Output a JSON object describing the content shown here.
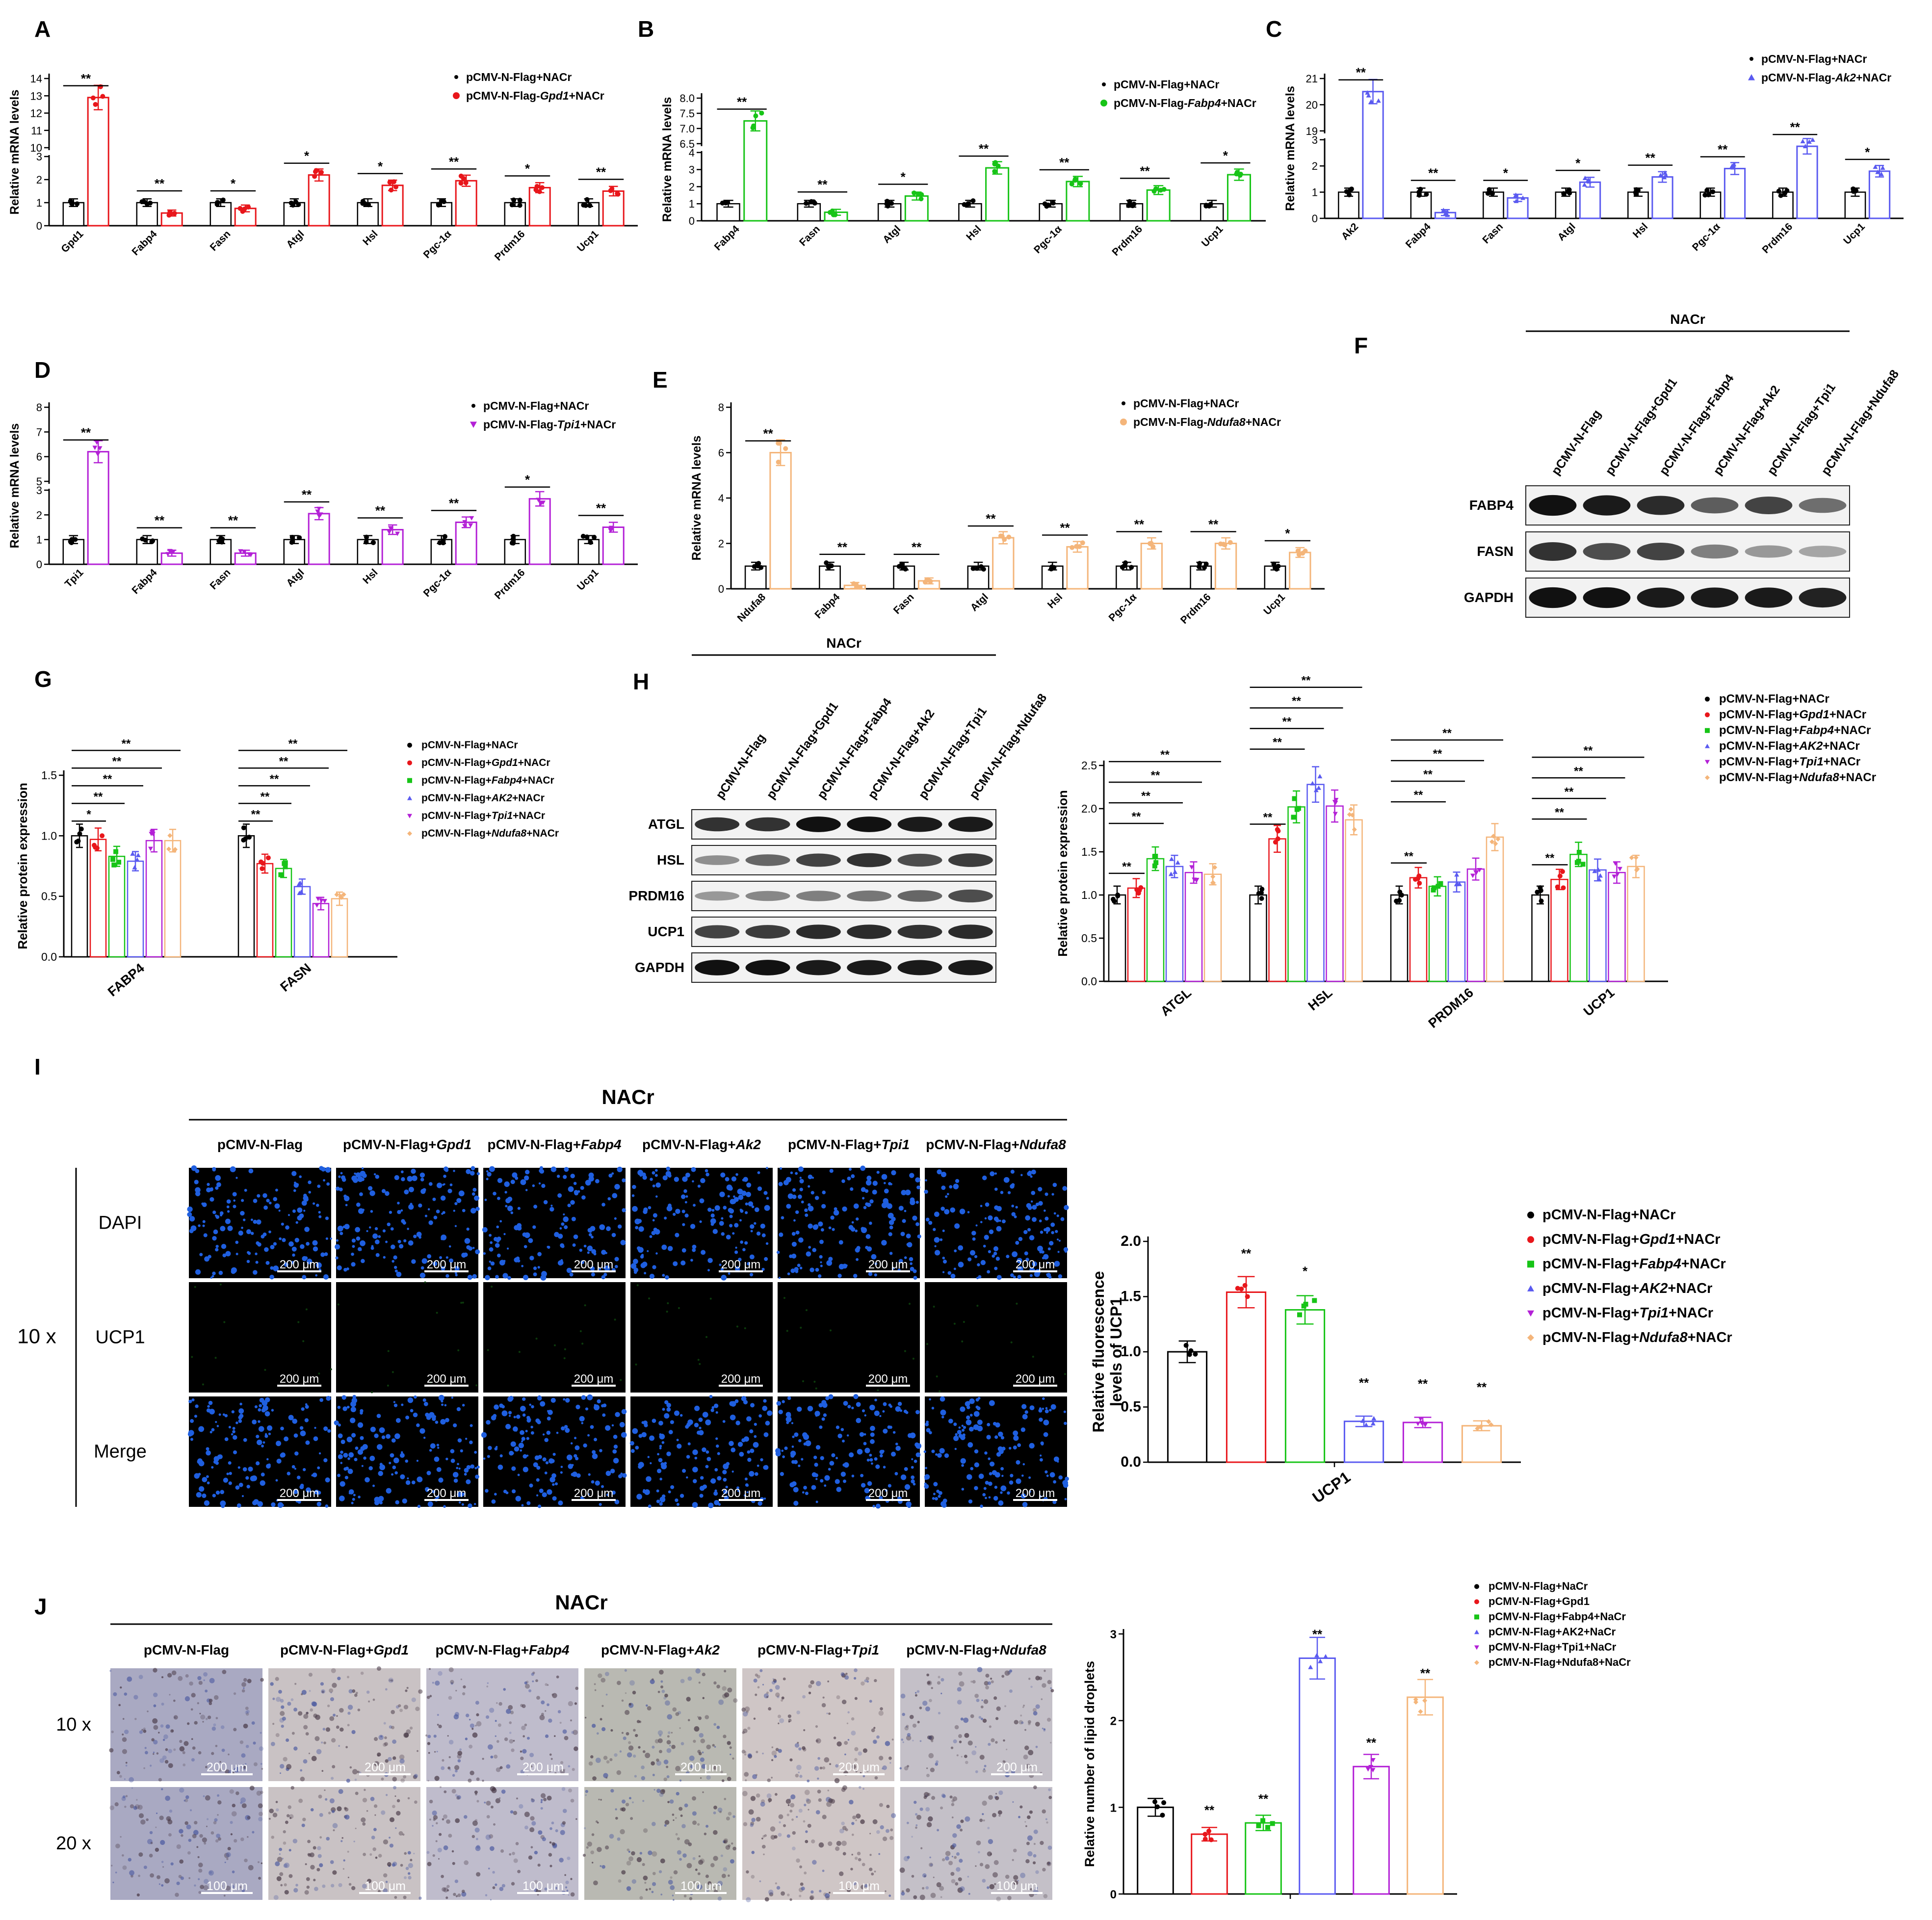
{
  "palette": {
    "ctrl": "#000000",
    "gpd1": "#e8161b",
    "fabp4": "#17c417",
    "ak2": "#5a5af0",
    "tpi1": "#b320d6",
    "ndufa8": "#f4b57a",
    "dapi": "#1f5fe0",
    "ucp1": "#0c3a0c"
  },
  "common": {
    "ylabel_mrna": "Relative mRNA levels",
    "ylabel_protein": "Relative protein expression",
    "sig1": "*",
    "sig2": "**",
    "nacr": "NACr"
  },
  "chart_data": [
    {
      "panel": "A",
      "type": "bar",
      "ylabel": "Relative mRNA levels",
      "ylim": [
        0,
        14
      ],
      "axis_break": [
        3,
        10
      ],
      "yticks_low": [
        "0",
        "1",
        "2",
        "3"
      ],
      "yticks_high": [
        "10",
        "11",
        "12",
        "13",
        "14"
      ],
      "categories": [
        "Gpd1",
        "Fabp4",
        "Fasn",
        "Atgl",
        "Hsl",
        "Pgc-1α",
        "Prdm16",
        "Ucp1"
      ],
      "series": [
        {
          "name": "pCMV-N-Flag+NACr",
          "values": [
            1,
            1,
            1,
            1,
            1,
            1,
            1,
            1
          ]
        },
        {
          "name": "pCMV-N-Flag-Gpd1+NACr",
          "values": [
            12.9,
            0.55,
            0.75,
            2.2,
            1.75,
            1.95,
            1.65,
            1.5
          ]
        }
      ],
      "sig": [
        "**",
        "**",
        "*",
        "*",
        "*",
        "**",
        "*",
        "**"
      ]
    },
    {
      "panel": "B",
      "type": "bar",
      "ylabel": "Relative mRNA levels",
      "ylim": [
        0,
        8
      ],
      "axis_break": [
        4,
        6.5
      ],
      "yticks_low": [
        "0",
        "1",
        "2",
        "3",
        "4"
      ],
      "yticks_high": [
        "6.5",
        "7.0",
        "7.5",
        "8.0"
      ],
      "categories": [
        "Fabp4",
        "Fasn",
        "Atgl",
        "Hsl",
        "Pgc-1α",
        "Prdm16",
        "Ucp1"
      ],
      "series": [
        {
          "name": "pCMV-N-Flag+NACr",
          "values": [
            1,
            1,
            1,
            1,
            1,
            1,
            1
          ]
        },
        {
          "name": "pCMV-N-Flag-Fabp4+NACr",
          "values": [
            7.25,
            0.5,
            1.45,
            3.1,
            2.3,
            1.8,
            2.7
          ]
        }
      ],
      "sig": [
        "**",
        "**",
        "*",
        "**",
        "**",
        "**",
        "*"
      ]
    },
    {
      "panel": "C",
      "type": "bar",
      "ylabel": "Relative mRNA levels",
      "ylim": [
        0,
        21
      ],
      "axis_break": [
        3,
        19
      ],
      "yticks_low": [
        "0",
        "1",
        "2",
        "3"
      ],
      "yticks_high": [
        "19",
        "20",
        "21"
      ],
      "categories": [
        "Ak2",
        "Fabp4",
        "Fasn",
        "Atgl",
        "Hsl",
        "Pgc-1α",
        "Prdm16",
        "Ucp1"
      ],
      "series": [
        {
          "name": "pCMV-N-Flag+NACr",
          "values": [
            1,
            1,
            1,
            1,
            1,
            1,
            1,
            1
          ]
        },
        {
          "name": "pCMV-N-Flag-Ak2+NACr",
          "values": [
            20.5,
            0.22,
            0.78,
            1.38,
            1.58,
            1.9,
            2.75,
            1.8
          ]
        }
      ],
      "sig": [
        "**",
        "**",
        "*",
        "*",
        "**",
        "**",
        "**",
        "*"
      ]
    },
    {
      "panel": "D",
      "type": "bar",
      "ylabel": "Relative mRNA levels",
      "ylim": [
        0,
        8
      ],
      "axis_break": [
        3,
        5
      ],
      "yticks_low": [
        "0",
        "1",
        "2",
        "3"
      ],
      "yticks_high": [
        "5",
        "6",
        "7",
        "8"
      ],
      "categories": [
        "Tpi1",
        "Fabp4",
        "Fasn",
        "Atgl",
        "Hsl",
        "Pgc-1α",
        "Prdm16",
        "Ucp1"
      ],
      "series": [
        {
          "name": "pCMV-N-Flag+NACr",
          "values": [
            1,
            1,
            1,
            1,
            1,
            1,
            1,
            1
          ]
        },
        {
          "name": "pCMV-N-Flag-Tpi1+NACr",
          "values": [
            6.2,
            0.45,
            0.45,
            2.05,
            1.4,
            1.7,
            2.65,
            1.5
          ]
        }
      ],
      "sig": [
        "**",
        "**",
        "**",
        "**",
        "**",
        "**",
        "*",
        "**"
      ]
    },
    {
      "panel": "E",
      "type": "bar",
      "ylabel": "Relative mRNA levels",
      "ylim": [
        0,
        8
      ],
      "yticks": [
        "0",
        "2",
        "4",
        "6",
        "8"
      ],
      "categories": [
        "Ndufa8",
        "Fabp4",
        "Fasn",
        "Atgl",
        "Hsl",
        "Pgc-1α",
        "Prdm16",
        "Ucp1"
      ],
      "series": [
        {
          "name": "pCMV-N-Flag+NACr",
          "values": [
            1,
            1,
            1,
            1,
            1,
            1,
            1,
            1
          ]
        },
        {
          "name": "pCMV-N-Flag-Ndufa8+NACr",
          "values": [
            6.0,
            0.15,
            0.35,
            2.25,
            1.85,
            2.0,
            2.0,
            1.6
          ]
        }
      ],
      "sig": [
        "**",
        "**",
        "**",
        "**",
        "**",
        "**",
        "**",
        "*"
      ]
    },
    {
      "panel": "G",
      "type": "bar",
      "ylabel": "Relative protein expression",
      "ylim": [
        0,
        1.5
      ],
      "yticks": [
        "0.0",
        "0.5",
        "1.0",
        "1.5"
      ],
      "categories": [
        "FABP4",
        "FASN"
      ],
      "series": [
        {
          "name": "pCMV-N-Flag+NACr",
          "values": [
            1.0,
            1.0
          ]
        },
        {
          "name": "pCMV-N-Flag+Gpd1+NACr",
          "values": [
            0.97,
            0.77
          ]
        },
        {
          "name": "pCMV-N-Flag+Fabp4+NACr",
          "values": [
            0.83,
            0.73
          ]
        },
        {
          "name": "pCMV-N-Flag+AK2+NACr",
          "values": [
            0.79,
            0.58
          ]
        },
        {
          "name": "pCMV-N-Flag+Tpi1+NACr",
          "values": [
            0.96,
            0.44
          ]
        },
        {
          "name": "pCMV-N-Flag+Ndufa8+NACr",
          "values": [
            0.96,
            0.48
          ]
        }
      ],
      "sig": [
        [
          "*",
          "**",
          "**",
          "**",
          "**"
        ],
        [
          "**",
          "**",
          "**",
          "**",
          "**"
        ]
      ]
    },
    {
      "panel": "H",
      "type": "bar",
      "ylabel": "Relative protein expression",
      "ylim": [
        0,
        2.5
      ],
      "yticks": [
        "0.0",
        "0.5",
        "1.0",
        "1.5",
        "2.0",
        "2.5"
      ],
      "categories": [
        "ATGL",
        "HSL",
        "PRDM16",
        "UCP1"
      ],
      "series": [
        {
          "name": "pCMV-N-Flag+NACr",
          "values": [
            1.0,
            1.0,
            1.0,
            1.0
          ]
        },
        {
          "name": "pCMV-N-Flag+Gpd1+NACr",
          "values": [
            1.08,
            1.65,
            1.2,
            1.18
          ]
        },
        {
          "name": "pCMV-N-Flag+Fabp4+NACr",
          "values": [
            1.42,
            2.02,
            1.1,
            1.47
          ]
        },
        {
          "name": "pCMV-N-Flag+AK2+NACr",
          "values": [
            1.33,
            2.28,
            1.15,
            1.29
          ]
        },
        {
          "name": "pCMV-N-Flag+Tpi1+NACr",
          "values": [
            1.26,
            2.03,
            1.3,
            1.26
          ]
        },
        {
          "name": "pCMV-N-Flag+Ndufa8+NACr",
          "values": [
            1.24,
            1.87,
            1.67,
            1.33
          ]
        }
      ],
      "sig": [
        [
          "**",
          "**",
          "**",
          "**",
          "**"
        ],
        [
          "**",
          "**",
          "**",
          "**",
          "**"
        ],
        [
          "**",
          "**",
          "**",
          "**",
          "**"
        ],
        [
          "**",
          "**",
          "**",
          "**",
          "**"
        ]
      ]
    },
    {
      "panel": "I",
      "type": "bar",
      "ylabel": "Relative fluorescence levels of UCP1",
      "ylim": [
        0,
        2.0
      ],
      "yticks": [
        "0.0",
        "0.5",
        "1.0",
        "1.5",
        "2.0"
      ],
      "categories": [
        "UCP1"
      ],
      "series": [
        {
          "name": "pCMV-N-Flag+NACr",
          "values": [
            1.0
          ]
        },
        {
          "name": "pCMV-N-Flag+Gpd1+NACr",
          "values": [
            1.54
          ]
        },
        {
          "name": "pCMV-N-Flag+Fabp4+NACr",
          "values": [
            1.38
          ]
        },
        {
          "name": "pCMV-N-Flag+AK2+NACr",
          "values": [
            0.37
          ]
        },
        {
          "name": "pCMV-N-Flag+Tpi1+NACr",
          "values": [
            0.36
          ]
        },
        {
          "name": "pCMV-N-Flag+Ndufa8+NACr",
          "values": [
            0.33
          ]
        }
      ],
      "sig": [
        "",
        "**",
        "*",
        "**",
        "**",
        "**"
      ]
    },
    {
      "panel": "J",
      "type": "bar",
      "ylabel": "Relative number of lipid droplets",
      "ylim": [
        0,
        3
      ],
      "yticks": [
        "0",
        "1",
        "2",
        "3"
      ],
      "categories": [
        ""
      ],
      "series": [
        {
          "name": "pCMV-N-Flag+NaCr",
          "values": [
            1.0
          ]
        },
        {
          "name": "pCMV-N-Flag+Gpd1",
          "values": [
            0.69
          ]
        },
        {
          "name": "pCMV-N-Flag+Fabp4+NaCr",
          "values": [
            0.82
          ]
        },
        {
          "name": "pCMV-N-Flag+AK2+NaCr",
          "values": [
            2.72
          ]
        },
        {
          "name": "pCMV-N-Flag+Tpi1+NaCr",
          "values": [
            1.47
          ]
        },
        {
          "name": "pCMV-N-Flag+Ndufa8+NaCr",
          "values": [
            2.27
          ]
        }
      ],
      "sig": [
        "",
        "**",
        "**",
        "**",
        "**",
        "**"
      ]
    }
  ],
  "western_F": {
    "group": "NACr",
    "lanes": [
      "pCMV-N-Flag",
      "pCMV-N-Flag+Gpd1",
      "pCMV-N-Flag+Fabp4",
      "pCMV-N-Flag+Ak2",
      "pCMV-N-Flag+Tpi1",
      "pCMV-N-Flag+Ndufa8"
    ],
    "proteins": [
      "FABP4",
      "FASN",
      "GAPDH"
    ]
  },
  "western_H": {
    "group": "NACr",
    "lanes": [
      "pCMV-N-Flag",
      "pCMV-N-Flag+Gpd1",
      "pCMV-N-Flag+Fabp4",
      "pCMV-N-Flag+Ak2",
      "pCMV-N-Flag+Tpi1",
      "pCMV-N-Flag+Ndufa8"
    ],
    "proteins": [
      "ATGL",
      "HSL",
      "PRDM16",
      "UCP1",
      "GAPDH"
    ]
  },
  "legend_GH": [
    [
      "pCMV-N-Flag+NACr"
    ],
    [
      "pCMV-N-Flag+",
      "Gpd1",
      "+NACr"
    ],
    [
      "pCMV-N-Flag+",
      "Fabp4",
      "+NACr"
    ],
    [
      "pCMV-N-Flag+",
      "AK2",
      "+NACr"
    ],
    [
      "pCMV-N-Flag+",
      "Tpi1",
      "+NACr"
    ],
    [
      "pCMV-N-Flag+",
      "Ndufa8",
      "+NACr"
    ]
  ],
  "legend_J": [
    "pCMV-N-Flag+NaCr",
    "pCMV-N-Flag+Gpd1",
    "pCMV-N-Flag+Fabp4+NaCr",
    "pCMV-N-Flag+AK2+NaCr",
    "pCMV-N-Flag+Tpi1+NaCr",
    "pCMV-N-Flag+Ndufa8+NaCr"
  ],
  "micro_I": {
    "group": "NACr",
    "columns": [
      [
        "pCMV-N-Flag"
      ],
      [
        "pCMV-N-Flag+",
        "Gpd1"
      ],
      [
        "pCMV-N-Flag+",
        "Fabp4"
      ],
      [
        "pCMV-N-Flag+",
        "Ak2"
      ],
      [
        "pCMV-N-Flag+",
        "Tpi1"
      ],
      [
        "pCMV-N-Flag+",
        "Ndufa8"
      ]
    ],
    "rows": [
      "DAPI",
      "UCP1",
      "Merge"
    ],
    "magnification": "10 x",
    "scale": "200 μm"
  },
  "micro_J": {
    "group": "NACr",
    "columns": [
      [
        "pCMV-N-Flag"
      ],
      [
        "pCMV-N-Flag+",
        "Gpd1"
      ],
      [
        "pCMV-N-Flag+",
        "Fabp4"
      ],
      [
        "pCMV-N-Flag+",
        "Ak2"
      ],
      [
        "pCMV-N-Flag+",
        "Tpi1"
      ],
      [
        "pCMV-N-Flag+",
        "Ndufa8"
      ]
    ],
    "rows": [
      "10 x",
      "20 x"
    ],
    "scales": [
      "200 μm",
      "100 μm"
    ]
  },
  "panel_letters": [
    "A",
    "B",
    "C",
    "D",
    "E",
    "F",
    "G",
    "H",
    "I",
    "J"
  ]
}
